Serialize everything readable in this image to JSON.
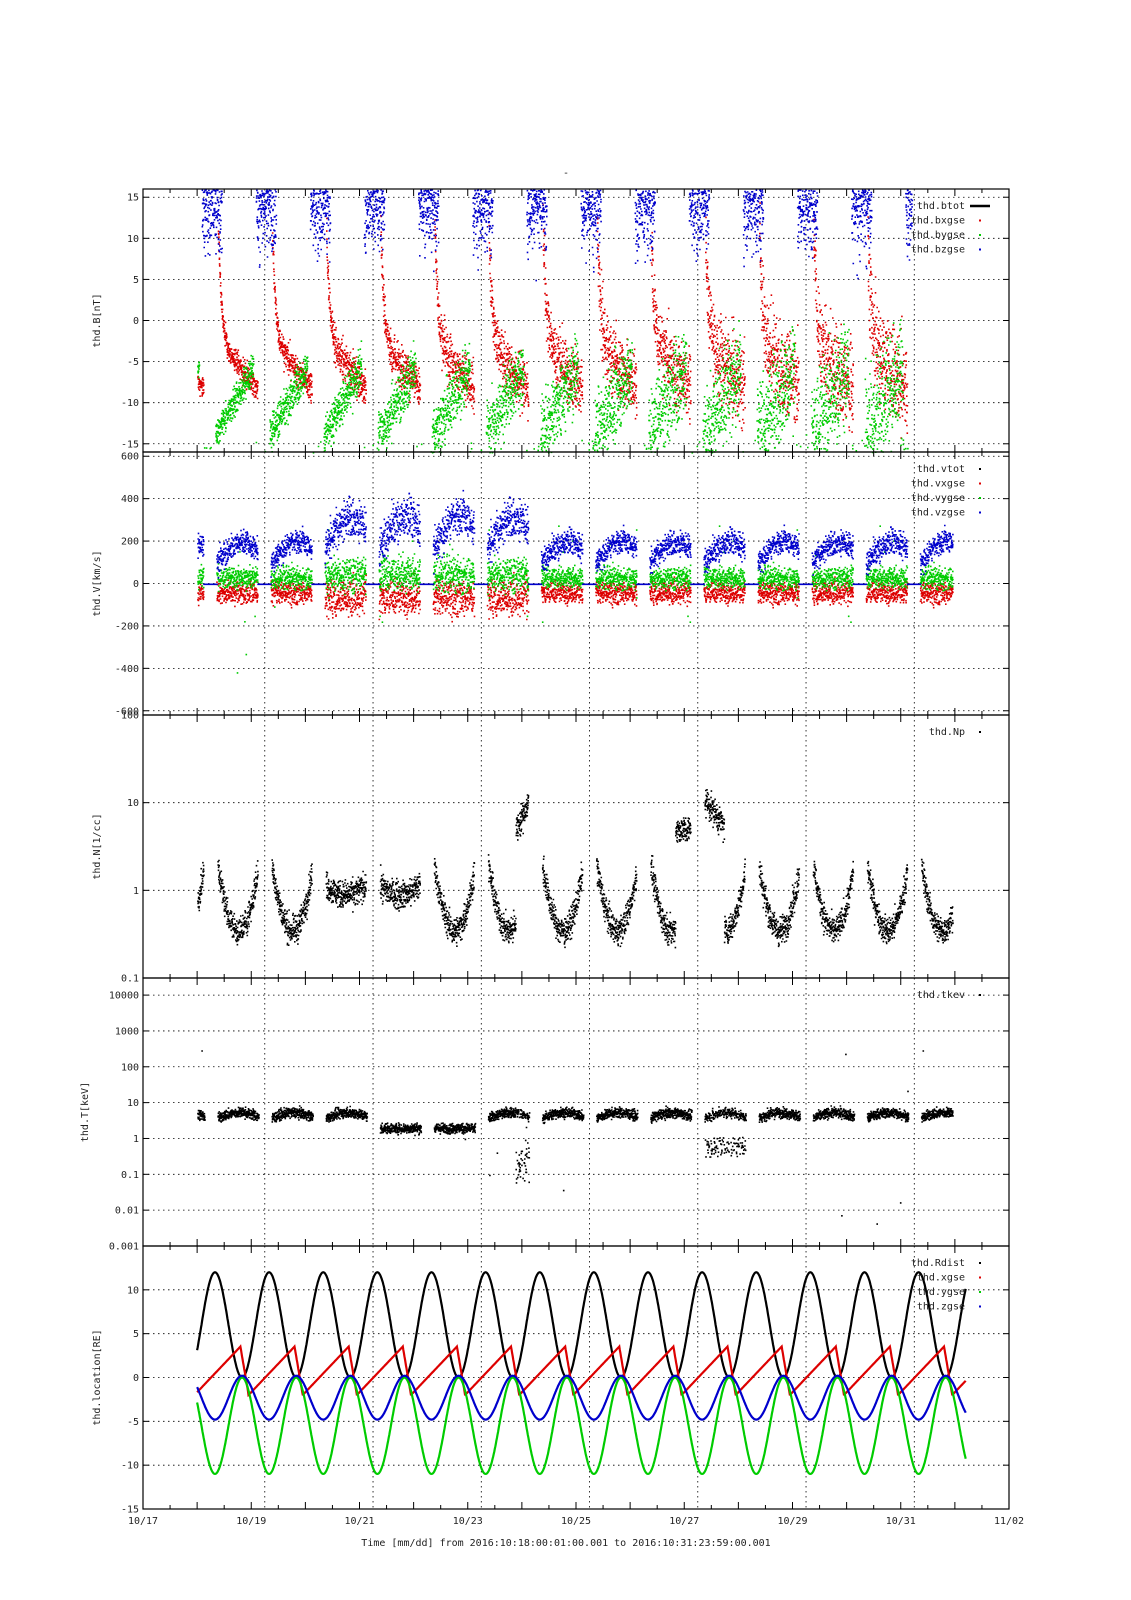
{
  "figure": {
    "top_title": "-",
    "xaxis_title": "Time [mm/dd]  from 2016:10:18:00:01:00.001  to  2016:10:31:23:59:00.001",
    "x_tick_labels": [
      "10/17",
      "10/19",
      "10/21",
      "10/23",
      "10/25",
      "10/27",
      "10/29",
      "10/31",
      "11/02"
    ],
    "x_range_days": [
      0,
      16
    ],
    "x_range_labels": [
      "10/17",
      "11/02"
    ]
  },
  "colors": {
    "black": "#000000",
    "red": "#dd0000",
    "green": "#00cc00",
    "blue": "#0000cc"
  },
  "chart_data": [
    {
      "type": "scatter",
      "ylabel": "thd.B[nT]",
      "ylim": [
        -16,
        16
      ],
      "yscale": "linear",
      "yticks": [
        -15,
        -10,
        -5,
        0,
        5,
        10,
        15
      ],
      "grid": true,
      "legend_placement": "top-right",
      "series": [
        {
          "name": "thd.btot",
          "color": "black",
          "style": "line"
        },
        {
          "name": "thd.bxgse",
          "color": "red",
          "style": "dots"
        },
        {
          "name": "thd.bygse",
          "color": "green",
          "style": "dots"
        },
        {
          "name": "thd.bzgse",
          "color": "blue",
          "style": "dots"
        }
      ]
    },
    {
      "type": "scatter",
      "ylabel": "thd.V[km/s]",
      "ylim": [
        -620,
        620
      ],
      "yscale": "linear",
      "yticks": [
        -600,
        -400,
        -200,
        0,
        200,
        400,
        600
      ],
      "grid": true,
      "legend_placement": "top-right",
      "series": [
        {
          "name": "thd.vtot",
          "color": "black",
          "style": "dots"
        },
        {
          "name": "thd.vxgse",
          "color": "red",
          "style": "dots"
        },
        {
          "name": "thd.vygse",
          "color": "green",
          "style": "dots"
        },
        {
          "name": "thd.vzgse",
          "color": "blue",
          "style": "dots"
        }
      ]
    },
    {
      "type": "scatter",
      "ylabel": "thd.N[1/cc]",
      "ylim": [
        0.1,
        100
      ],
      "yscale": "log",
      "yticks": [
        0.1,
        1,
        10,
        100
      ],
      "ytick_labels": [
        "0.1",
        "1",
        "10",
        "100"
      ],
      "grid": true,
      "legend_placement": "top-right",
      "series": [
        {
          "name": "thd.Np",
          "color": "black",
          "style": "dots"
        }
      ]
    },
    {
      "type": "scatter",
      "ylabel": "thd.T[keV]",
      "ylim": [
        0.001,
        30000
      ],
      "yscale": "log",
      "yticks": [
        0.001,
        0.01,
        0.1,
        1,
        10,
        100,
        1000,
        10000
      ],
      "ytick_labels": [
        "0.001",
        "0.01",
        "0.1",
        "1",
        "10",
        "100",
        "1000",
        "10000"
      ],
      "grid": true,
      "legend_placement": "top-right",
      "series": [
        {
          "name": "thd.tkev",
          "color": "black",
          "style": "dots"
        }
      ]
    },
    {
      "type": "line",
      "ylabel": "thd.location[RE]",
      "ylim": [
        -15,
        15
      ],
      "yscale": "linear",
      "yticks": [
        -15,
        -10,
        -5,
        0,
        5,
        10
      ],
      "grid": true,
      "legend_placement": "top-right",
      "series": [
        {
          "name": "thd.Rdist",
          "color": "black"
        },
        {
          "name": "thd.xgse",
          "color": "red"
        },
        {
          "name": "thd.ygse",
          "color": "green"
        },
        {
          "name": "thd.zgse",
          "color": "blue"
        }
      ]
    }
  ]
}
